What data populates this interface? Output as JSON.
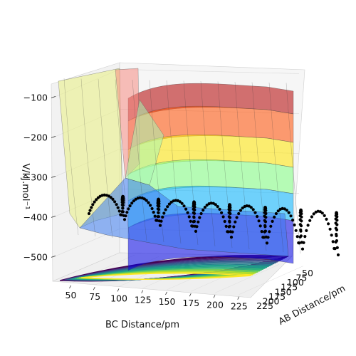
{
  "chart_data": {
    "type": "surface3d",
    "title": "",
    "ylabel": "V/kJ.mol⁻¹",
    "xlabel": "BC Distance/pm",
    "zlabel": "AB Distance/pm",
    "z_ticks": [
      -100,
      -200,
      -300,
      -400,
      -500
    ],
    "x_ticks": [
      50,
      75,
      100,
      125,
      150,
      175,
      200,
      225
    ],
    "depth_ticks": [
      50,
      75,
      100,
      125,
      150,
      175,
      200,
      225
    ],
    "depth_tick_labels": [
      "50",
      "75",
      "100",
      "125",
      "150",
      "175",
      "200",
      "225"
    ],
    "zlim": [
      -560,
      -60
    ],
    "xlim": [
      40,
      240
    ],
    "depth_lim": [
      40,
      240
    ],
    "colormap_surface": "jet",
    "colormap_contour": "viridis",
    "trajectory_color": "#000000",
    "grid": true
  }
}
